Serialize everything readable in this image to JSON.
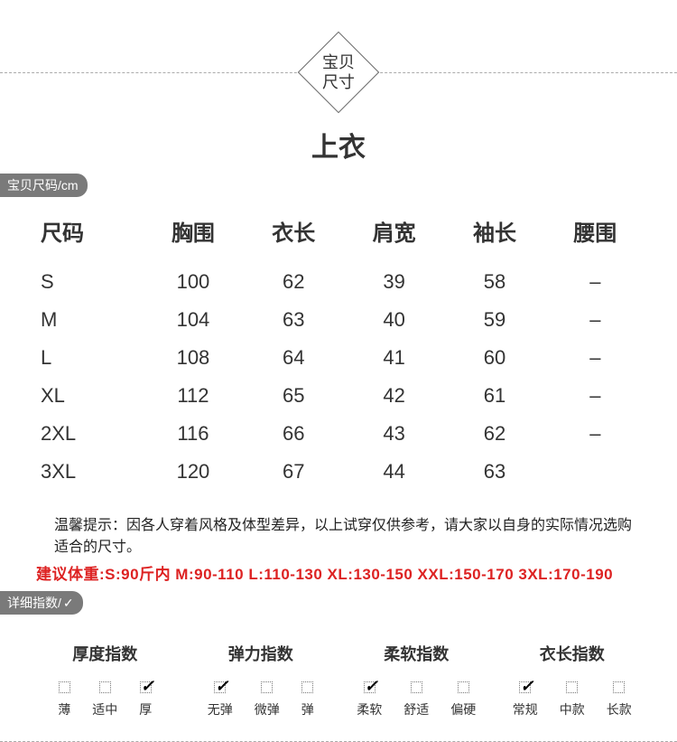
{
  "header": {
    "diamond_line1": "宝贝",
    "diamond_line2": "尺寸"
  },
  "title": "上衣",
  "section_tags": {
    "size_label": "宝贝尺码/cm",
    "detail_label": "详细指数/",
    "check": "✓"
  },
  "size_table": {
    "columns": [
      "尺码",
      "胸围",
      "衣长",
      "肩宽",
      "袖长",
      "腰围"
    ],
    "rows": [
      [
        "S",
        "100",
        "62",
        "39",
        "58",
        "–"
      ],
      [
        "M",
        "104",
        "63",
        "40",
        "59",
        "–"
      ],
      [
        "L",
        "108",
        "64",
        "41",
        "60",
        "–"
      ],
      [
        "XL",
        "112",
        "65",
        "42",
        "61",
        "–"
      ],
      [
        "2XL",
        "116",
        "66",
        "43",
        "62",
        "–"
      ],
      [
        "3XL",
        "120",
        "67",
        "44",
        "63",
        ""
      ]
    ]
  },
  "tip_text": "温馨提示：因各人穿着风格及体型差异，以上试穿仅供参考，请大家以自身的实际情况选购适合的尺寸。",
  "weight_text": "建议体重:S:90斤内 M:90-110  L:110-130  XL:130-150  XXL:150-170  3XL:170-190",
  "indices": [
    {
      "title": "厚度指数",
      "options": [
        {
          "label": "薄",
          "checked": false
        },
        {
          "label": "适中",
          "checked": false
        },
        {
          "label": "厚",
          "checked": true
        }
      ]
    },
    {
      "title": "弹力指数",
      "options": [
        {
          "label": "无弹",
          "checked": true
        },
        {
          "label": "微弹",
          "checked": false
        },
        {
          "label": "弹",
          "checked": false
        }
      ]
    },
    {
      "title": "柔软指数",
      "options": [
        {
          "label": "柔软",
          "checked": true
        },
        {
          "label": "舒适",
          "checked": false
        },
        {
          "label": "偏硬",
          "checked": false
        }
      ]
    },
    {
      "title": "衣长指数",
      "options": [
        {
          "label": "常规",
          "checked": true
        },
        {
          "label": "中款",
          "checked": false
        },
        {
          "label": "长款",
          "checked": false
        }
      ]
    }
  ]
}
